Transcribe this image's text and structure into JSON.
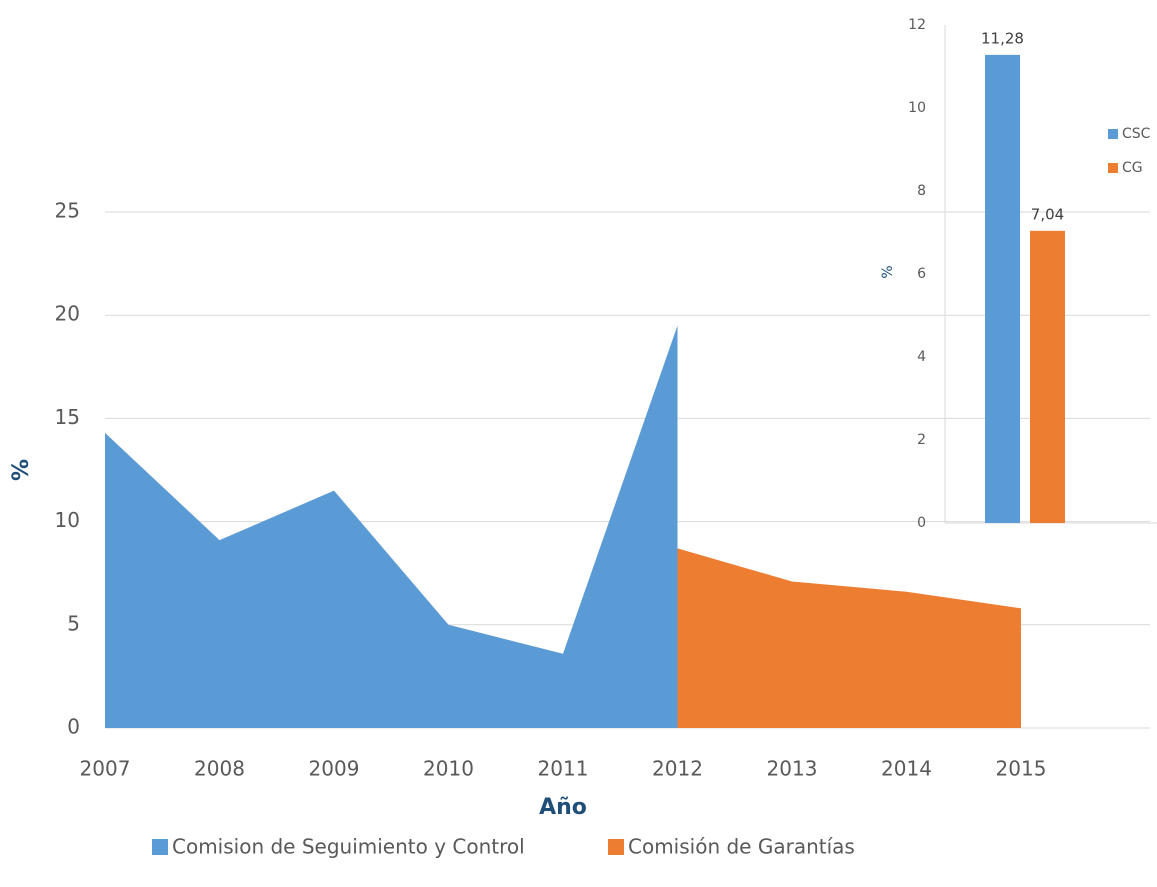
{
  "chart_data": [
    {
      "type": "area",
      "x": [
        2007,
        2008,
        2009,
        2010,
        2011,
        2012,
        2013,
        2014,
        2015
      ],
      "series": [
        {
          "name": "Comision de Seguimiento y Control",
          "color": "#5b9bd5",
          "values": [
            14.3,
            9.1,
            11.5,
            5.0,
            3.6,
            19.5,
            null,
            null,
            null
          ]
        },
        {
          "name": "Comisión de Garantías",
          "color": "#ed7d31",
          "values": [
            null,
            null,
            null,
            null,
            null,
            8.7,
            7.1,
            6.6,
            5.8
          ]
        }
      ],
      "xlim": [
        2007,
        2015
      ],
      "xticks": [
        2007,
        2008,
        2009,
        2010,
        2011,
        2012,
        2013,
        2014,
        2015
      ],
      "ylim": [
        0,
        25
      ],
      "yticks": [
        0,
        5,
        10,
        15,
        20,
        25
      ],
      "xlabel": "Año",
      "ylabel": "%",
      "grid": true,
      "legend": "bottom"
    },
    {
      "type": "bar",
      "categories": [
        null
      ],
      "series": [
        {
          "name": "CSC",
          "color": "#5b9bd5",
          "values": [
            11.28
          ],
          "value_labels": [
            "11,28"
          ]
        },
        {
          "name": "CG",
          "color": "#ed7d31",
          "values": [
            7.04
          ],
          "value_labels": [
            "7,04"
          ]
        }
      ],
      "ylim": [
        0,
        12
      ],
      "yticks": [
        0,
        2,
        4,
        6,
        8,
        10,
        12
      ],
      "ylabel": "%",
      "grid": false,
      "legend": "right"
    }
  ]
}
